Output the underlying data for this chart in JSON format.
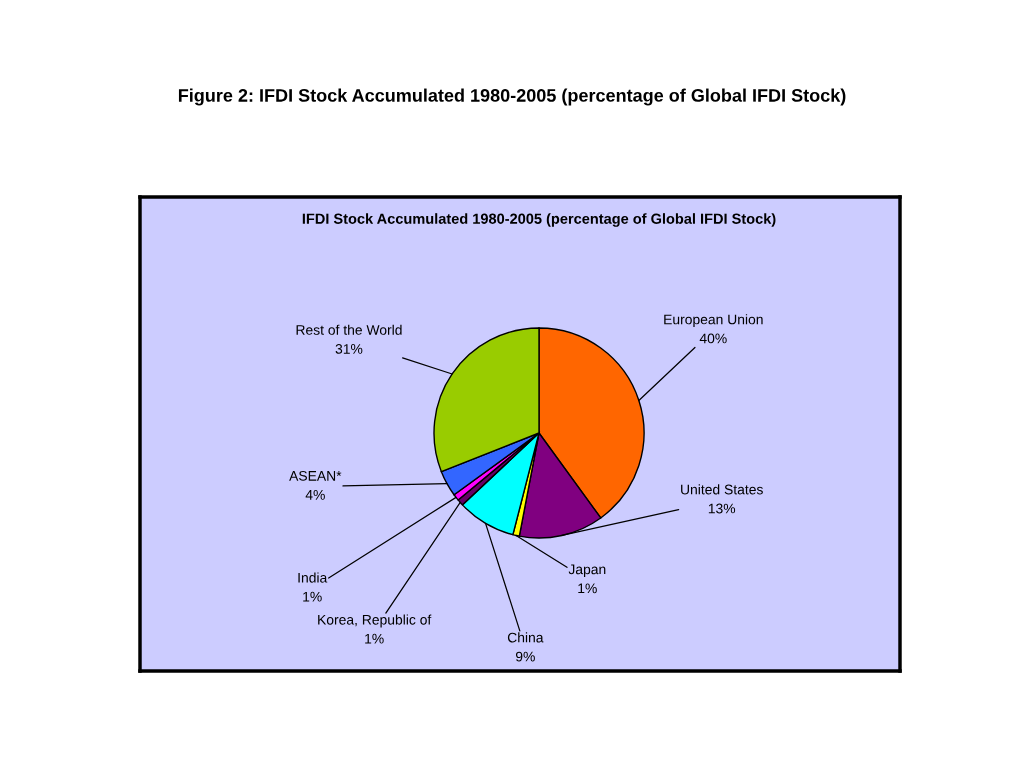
{
  "chart_data": {
    "type": "pie",
    "title": "Figure 2: IFDI Stock Accumulated 1980-2005 (percentage of Global IFDI Stock)",
    "subtitle": "IFDI Stock Accumulated 1980-2005 (percentage of Global IFDI Stock)",
    "categories": [
      "European Union",
      "United States",
      "Japan",
      "China",
      "Korea, Republic of",
      "India",
      "ASEAN*",
      "Rest of the World"
    ],
    "values": [
      40,
      13,
      1,
      9,
      1,
      1,
      4,
      31
    ],
    "value_labels": [
      "40%",
      "13%",
      "1%",
      "9%",
      "1%",
      "1%",
      "4%",
      "31%"
    ],
    "colors": [
      "#ff6600",
      "#800080",
      "#ffff00",
      "#00ffff",
      "#660066",
      "#ff00ff",
      "#3366ff",
      "#99cc00"
    ],
    "legend": false
  }
}
